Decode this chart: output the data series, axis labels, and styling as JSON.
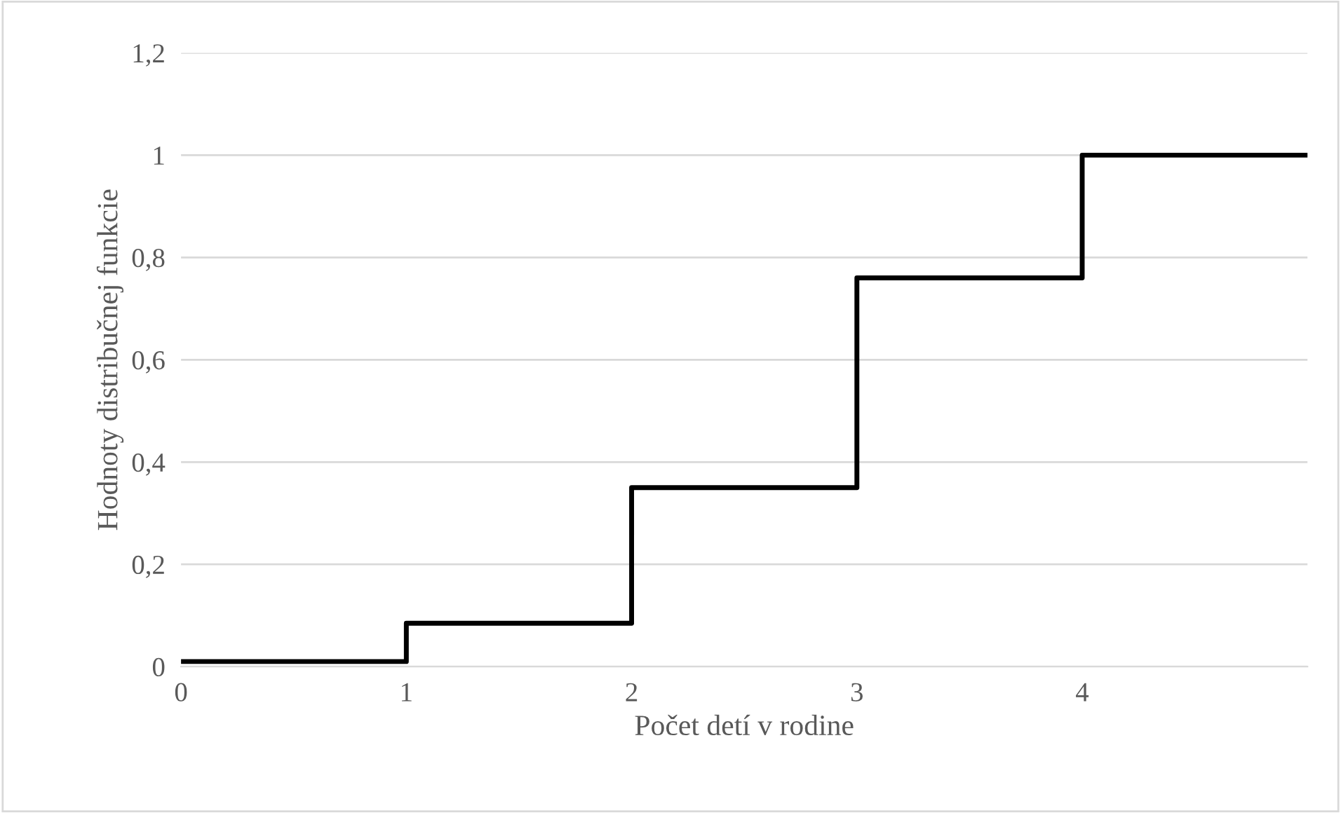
{
  "chart_data": {
    "type": "step",
    "xlabel": "Počet detí v rodine",
    "ylabel": "Hodnoty distribučnej funkcie",
    "x": [
      0,
      1,
      2,
      3,
      4,
      5
    ],
    "series": [
      {
        "color": "#000000",
        "values": [
          0.01,
          0.085,
          0.35,
          0.76,
          1,
          1
        ]
      }
    ],
    "xlim": [
      0,
      5
    ],
    "xticks": [
      0,
      1,
      2,
      3,
      4
    ],
    "ylim": [
      0,
      1.2
    ],
    "yticks": [
      0,
      {
        "value": 0.2,
        "label": "0,2"
      },
      {
        "value": 0.4,
        "label": "0,4"
      },
      {
        "value": 0.6,
        "label": "0,6"
      },
      {
        "value": 0.8,
        "label": "0,8"
      },
      1,
      {
        "value": 1.2,
        "label": "1,2"
      }
    ],
    "grid": "y",
    "legend": false,
    "marker": "none",
    "line_style": "solid"
  }
}
